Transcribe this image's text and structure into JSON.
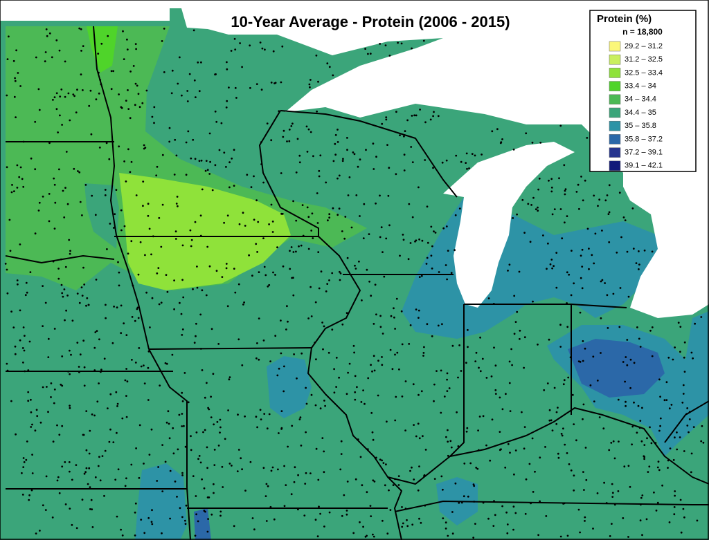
{
  "title": "10-Year Average - Protein (2006 - 2015)",
  "legend": {
    "title": "Protein (%)",
    "subtitle": "n = 18,800",
    "items": [
      {
        "label": "29.2 – 31.2",
        "color": "#fbf77a"
      },
      {
        "label": "31.2 – 32.5",
        "color": "#c9ef5f"
      },
      {
        "label": "32.5 – 33.4",
        "color": "#8fe23a"
      },
      {
        "label": "33.4 – 34",
        "color": "#4fd42a"
      },
      {
        "label": "34 – 34.4",
        "color": "#4cb955"
      },
      {
        "label": "34.4 – 35",
        "color": "#3ba57a"
      },
      {
        "label": "35 – 35.8",
        "color": "#2d93a6"
      },
      {
        "label": "35.8 – 37.2",
        "color": "#2b68a8"
      },
      {
        "label": "37.2 – 39.1",
        "color": "#26358f"
      },
      {
        "label": "39.1 – 42.1",
        "color": "#121a7a"
      }
    ]
  }
}
